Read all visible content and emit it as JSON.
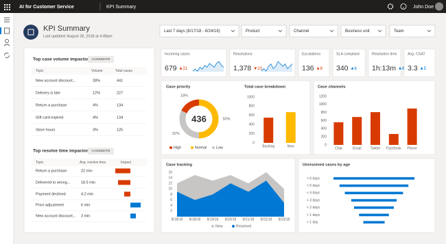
{
  "app": {
    "title": "AI for Customer Service",
    "page": "KPI Summary",
    "user": "John Doe"
  },
  "header": {
    "title": "KPI Summary",
    "updated": "Last updated: August 28, 2018 at 4:45pm"
  },
  "filters": [
    "Last 7 days (8/17/18 - 8/24/18)",
    "Product",
    "Channel",
    "Business unit",
    "Team"
  ],
  "volume_impactors": {
    "title": "Top case volume impactors",
    "badge": "AI INSIGHTS",
    "columns": [
      "Topic",
      "Volume",
      "Total cases"
    ],
    "rows": [
      [
        "New account discount...",
        "28%",
        "441"
      ],
      [
        "Delivery is late",
        "12%",
        "227"
      ],
      [
        "Return a purchase",
        "4%",
        "134"
      ],
      [
        "Gift card expired",
        "4%",
        "134"
      ],
      [
        "Store hours",
        "3%",
        "125"
      ]
    ]
  },
  "resolve_impactors": {
    "title": "Top resolve time impactors",
    "badge": "AI INSIGHTS",
    "columns": [
      "Topic",
      "Avg. resolve time",
      "Impact"
    ],
    "rows": [
      [
        "Return a purchase",
        "22 min"
      ],
      [
        "Delivered to wrong...",
        "18.5 min"
      ],
      [
        "Payment declined",
        "4.2 min"
      ],
      [
        "Price adjustment",
        "6 min"
      ],
      [
        "New account discount...",
        "3 min"
      ]
    ],
    "impact": [
      -2.2,
      -1.8,
      -0.9,
      1.5,
      0.8
    ],
    "impact_xlim": [
      -3,
      3
    ],
    "negative_color": "#d83b01",
    "positive_color": "#0078d4"
  },
  "kpis": [
    {
      "label": "Incoming cases",
      "value": "679",
      "change": "21",
      "direction": "up",
      "color": "#d83b01",
      "trend": [
        5,
        6,
        5,
        7,
        6,
        8,
        7,
        9,
        8,
        7,
        9,
        10,
        8,
        7
      ]
    },
    {
      "label": "Resolutions",
      "value": "1,378",
      "change": "23",
      "direction": "down",
      "color": "#d83b01",
      "trend": [
        6,
        7,
        6,
        8,
        9,
        7,
        8,
        10,
        9,
        8,
        9,
        7,
        8,
        9
      ]
    },
    {
      "label": "Escalations",
      "value": "136",
      "change": "8",
      "direction": "up",
      "color": "#d83b01"
    },
    {
      "label": "SLA compliant",
      "value": "340",
      "change": "6",
      "direction": "up",
      "color": "#0078d4"
    },
    {
      "label": "Resolution time",
      "value": "1h:13m",
      "change": "8",
      "direction": "up",
      "color": "#0078d4"
    },
    {
      "label": "Avg. CSAT",
      "value": "3.3",
      "change": "5",
      "direction": "up",
      "color": "#0078d4"
    }
  ],
  "chart_data": [
    {
      "type": "pie",
      "title": "Case priority",
      "categories": [
        "High",
        "Normal",
        "Low"
      ],
      "values": [
        18,
        50,
        32
      ],
      "value_labels": [
        "18%",
        "50%",
        "32%"
      ],
      "colors": [
        "#d83b01",
        "#ffb900",
        "#c8c6c4"
      ],
      "center_label": 436
    },
    {
      "type": "bar",
      "title": "Total case breakdown",
      "categories": [
        "Backlog",
        "New"
      ],
      "values": [
        550,
        670
      ],
      "colors": [
        "#d83b01",
        "#ffb900"
      ],
      "ylim": [
        0,
        1000
      ],
      "yticks": [
        0,
        200,
        400,
        600,
        800,
        1000
      ],
      "grid": false
    },
    {
      "type": "bar",
      "title": "Case channels",
      "categories": [
        "Chat",
        "Email",
        "Twitter",
        "Facebook",
        "Phone"
      ],
      "values": [
        560,
        690,
        810,
        270,
        900
      ],
      "color": "#d83b01",
      "ylim": [
        0,
        1200
      ],
      "yticks": [
        0,
        200,
        400,
        600,
        800,
        1000,
        1200
      ],
      "grid": false
    },
    {
      "type": "area",
      "title": "Case tracking",
      "categories": [
        "8/18/18",
        "8/18/18",
        "8/19/18",
        "8/20/18",
        "8/21/18",
        "8/22/18",
        "8/23/18"
      ],
      "series": [
        {
          "name": "New",
          "color": "#c8c6c4",
          "values": [
            12,
            15,
            13,
            15,
            12,
            16,
            10
          ]
        },
        {
          "name": "Resolved",
          "color": "#0078d4",
          "values": [
            9,
            6,
            8,
            12,
            9,
            13,
            5
          ]
        }
      ],
      "ylim": [
        0,
        16
      ],
      "yticks": [
        2,
        4,
        6,
        8,
        10,
        12,
        14,
        16
      ],
      "grid": false
    },
    {
      "type": "funnel",
      "title": "Unresolved cases by age",
      "categories": [
        "< 6 days",
        "< 5 days",
        "< 4 days",
        "< 3 days",
        "< 2 days",
        "< 1 days",
        "< 1 day"
      ],
      "values": [
        114,
        97,
        82,
        64,
        56,
        42,
        30
      ],
      "color": "#0078d4"
    }
  ]
}
